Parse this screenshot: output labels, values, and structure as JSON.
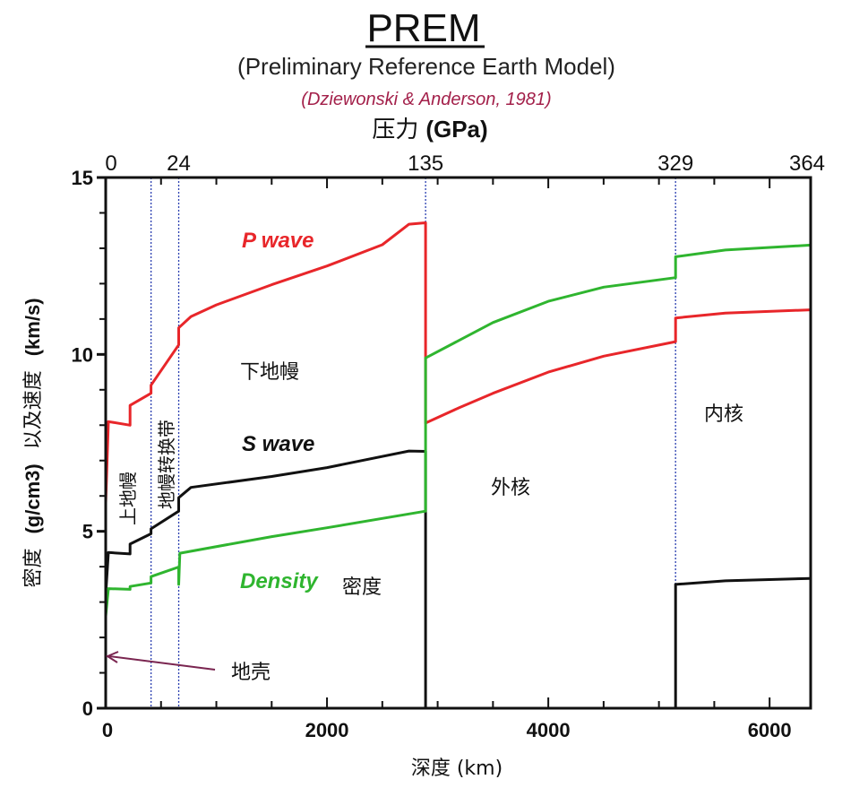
{
  "chart_data": {
    "type": "line",
    "title": "PREM",
    "subtitle": "(Preliminary Reference Earth Model)",
    "citation": "(Dziewonski  & Anderson, 1981)",
    "xlabel": "深度  (km)",
    "ylabel_density": "密度",
    "ylabel_units": "(g/cm3)",
    "ylabel_speed": "以及速度",
    "ylabel_speed_units": "(km/s)",
    "top_axis_label_cn": "压力",
    "top_axis_label_unit": "(GPa)",
    "xlim": [
      0,
      6371
    ],
    "ylim": [
      0,
      15
    ],
    "x_ticks": [
      "0",
      "2000",
      "4000",
      "6000"
    ],
    "x_tick_values": [
      0,
      2000,
      4000,
      6000
    ],
    "y_ticks": [
      "0",
      "5",
      "10",
      "15"
    ],
    "y_tick_values": [
      0,
      5,
      10,
      15
    ],
    "top_ticks": [
      {
        "depth": 0,
        "label": "0"
      },
      {
        "depth": 660,
        "label": "24"
      },
      {
        "depth": 2891,
        "label": "135"
      },
      {
        "depth": 5150,
        "label": "329"
      },
      {
        "depth": 6371,
        "label": "364"
      }
    ],
    "boundaries_km": [
      410,
      660,
      2891,
      5150
    ],
    "grid": false,
    "series": [
      {
        "name": "P wave",
        "color": "#e8262a",
        "points": [
          [
            0,
            5.8
          ],
          [
            24,
            8.1
          ],
          [
            220,
            8.0
          ],
          [
            220,
            8.56
          ],
          [
            410,
            8.9
          ],
          [
            410,
            9.13
          ],
          [
            660,
            10.27
          ],
          [
            660,
            10.75
          ],
          [
            771,
            11.07
          ],
          [
            1000,
            11.4
          ],
          [
            1500,
            11.97
          ],
          [
            2000,
            12.5
          ],
          [
            2500,
            13.1
          ],
          [
            2741,
            13.68
          ],
          [
            2891,
            13.72
          ],
          [
            2891,
            8.06
          ],
          [
            3200,
            8.5
          ],
          [
            3500,
            8.9
          ],
          [
            4000,
            9.5
          ],
          [
            4500,
            9.95
          ],
          [
            5150,
            10.36
          ],
          [
            5150,
            11.03
          ],
          [
            5600,
            11.17
          ],
          [
            6371,
            11.26
          ]
        ]
      },
      {
        "name": "S wave",
        "color": "#111111",
        "points": [
          [
            0,
            3.2
          ],
          [
            24,
            4.4
          ],
          [
            220,
            4.36
          ],
          [
            220,
            4.64
          ],
          [
            410,
            4.93
          ],
          [
            410,
            5.07
          ],
          [
            660,
            5.57
          ],
          [
            660,
            5.95
          ],
          [
            771,
            6.24
          ],
          [
            1500,
            6.55
          ],
          [
            2000,
            6.8
          ],
          [
            2741,
            7.27
          ],
          [
            2891,
            7.26
          ],
          [
            2891,
            0
          ],
          [
            5150,
            0
          ],
          [
            5150,
            3.5
          ],
          [
            5600,
            3.6
          ],
          [
            6371,
            3.67
          ]
        ]
      },
      {
        "name": "Density",
        "color": "#2fb52f",
        "points": [
          [
            0,
            2.6
          ],
          [
            24,
            3.38
          ],
          [
            220,
            3.36
          ],
          [
            220,
            3.44
          ],
          [
            410,
            3.54
          ],
          [
            410,
            3.72
          ],
          [
            660,
            3.99
          ],
          [
            660,
            3.5
          ],
          [
            670,
            4.38
          ],
          [
            1500,
            4.85
          ],
          [
            2000,
            5.1
          ],
          [
            2891,
            5.57
          ],
          [
            2891,
            9.9
          ],
          [
            3500,
            10.9
          ],
          [
            4000,
            11.5
          ],
          [
            4500,
            11.9
          ],
          [
            5150,
            12.17
          ],
          [
            5150,
            12.76
          ],
          [
            5600,
            12.95
          ],
          [
            6371,
            13.09
          ]
        ]
      }
    ],
    "annotations": {
      "p_wave": "P wave",
      "s_wave": "S wave",
      "density": "Density",
      "density_cn": "密度",
      "lower_mantle": "下地幔",
      "outer_core": "外核",
      "inner_core": "内核",
      "upper_mantle": "上地幔",
      "transition_zone": "地幔转换带",
      "crust": "地壳"
    }
  }
}
